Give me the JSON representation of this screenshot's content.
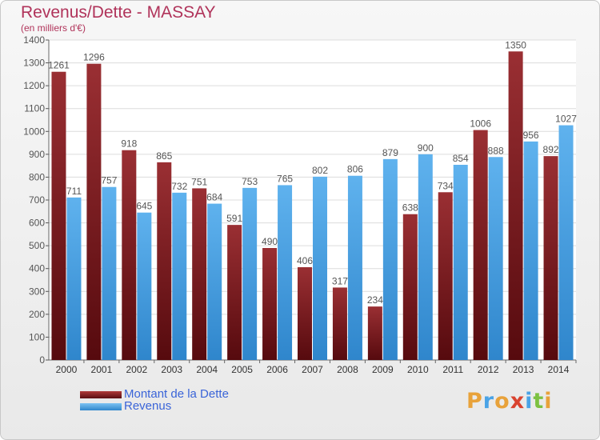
{
  "chart_data": {
    "type": "bar",
    "title": "Revenus/Dette - MASSAY",
    "subtitle": "(en milliers d'€)",
    "categories": [
      "2000",
      "2001",
      "2002",
      "2003",
      "2004",
      "2005",
      "2006",
      "2007",
      "2008",
      "2009",
      "2010",
      "2011",
      "2012",
      "2013",
      "2014"
    ],
    "series": [
      {
        "name": "Montant de la Dette",
        "color": "#7a1e22",
        "values": [
          1261,
          1296,
          918,
          865,
          751,
          591,
          490,
          406,
          317,
          234,
          638,
          734,
          1006,
          1350,
          892
        ]
      },
      {
        "name": "Revenus",
        "color": "#4aa3e6",
        "values": [
          711,
          757,
          645,
          732,
          684,
          753,
          765,
          802,
          806,
          879,
          900,
          854,
          888,
          956,
          1027
        ]
      }
    ],
    "ylim": [
      0,
      1400
    ],
    "yticks": [
      0,
      100,
      200,
      300,
      400,
      500,
      600,
      700,
      800,
      900,
      1000,
      1100,
      1200,
      1300,
      1400
    ],
    "grid": true,
    "legend_position": "bottom-left"
  },
  "brand": {
    "logo_letters": [
      "P",
      "r",
      "o",
      "x",
      "i",
      "t",
      "i"
    ],
    "logo_colors": [
      "#e8a23a",
      "#4aa3e6",
      "#e8a23a",
      "#d9432f",
      "#4aa3e6",
      "#7cc142",
      "#e8a23a"
    ]
  }
}
